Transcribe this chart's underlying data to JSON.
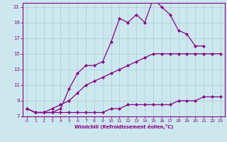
{
  "xlabel": "Windchill (Refroidissement éolien,°C)",
  "background_color": "#cce8ee",
  "line_color": "#880088",
  "grid_color": "#aaccd4",
  "x_hours": [
    0,
    1,
    2,
    3,
    4,
    5,
    6,
    7,
    8,
    9,
    10,
    11,
    12,
    13,
    14,
    15,
    16,
    17,
    18,
    19,
    20,
    21,
    22,
    23
  ],
  "series1": [
    8.0,
    7.5,
    7.5,
    7.5,
    7.5,
    7.5,
    7.5,
    7.5,
    7.5,
    7.5,
    8.0,
    8.0,
    8.5,
    8.5,
    8.5,
    8.5,
    8.5,
    8.5,
    9.0,
    9.0,
    9.0,
    9.5,
    9.5,
    9.5
  ],
  "series2": [
    8.0,
    7.5,
    7.5,
    8.0,
    8.5,
    9.0,
    10.0,
    11.0,
    11.5,
    12.0,
    12.5,
    13.0,
    13.5,
    14.0,
    14.5,
    15.0,
    15.0,
    15.0,
    15.0,
    15.0,
    15.0,
    15.0,
    15.0,
    15.0
  ],
  "series3": [
    8.0,
    7.5,
    7.5,
    7.5,
    8.0,
    10.5,
    12.5,
    13.5,
    13.5,
    14.0,
    16.5,
    19.5,
    19.0,
    20.0,
    19.0,
    22.0,
    21.0,
    20.0,
    18.0,
    17.5,
    16.0,
    16.0,
    null,
    null
  ],
  "ylim": [
    7,
    21.5
  ],
  "xlim": [
    -0.5,
    23.5
  ],
  "yticks": [
    7,
    9,
    11,
    13,
    15,
    17,
    19,
    21
  ],
  "xticks": [
    0,
    1,
    2,
    3,
    4,
    5,
    6,
    7,
    8,
    9,
    10,
    11,
    12,
    13,
    14,
    15,
    16,
    17,
    18,
    19,
    20,
    21,
    22,
    23
  ]
}
